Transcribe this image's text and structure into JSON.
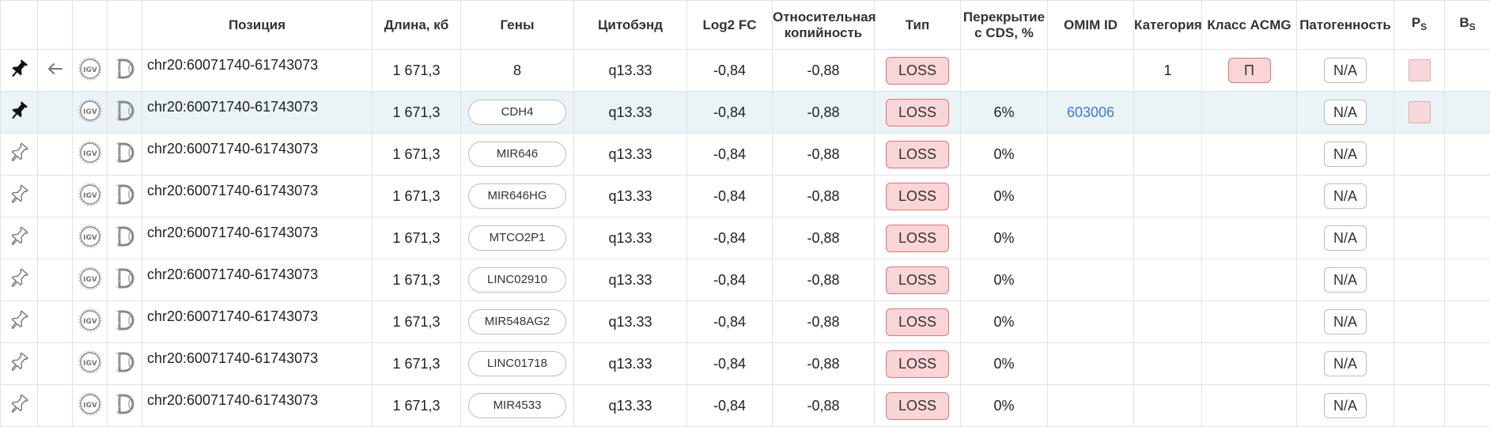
{
  "headers": {
    "position": "Позиция",
    "length": "Длина, кб",
    "genes": "Гены",
    "cytoband": "Цитобэнд",
    "log2fc": "Log2 FC",
    "relcopy_1": "Относительная",
    "relcopy_2": "копийность",
    "type": "Тип",
    "overlap_1": "Перекрытие",
    "overlap_2": "с CDS, %",
    "omim": "OMIM ID",
    "category": "Категория",
    "acmg": "Класс ACMG",
    "pathogenicity": "Патогенность",
    "ps_main": "P",
    "ps_sub": "S",
    "bs_main": "B",
    "bs_sub": "S"
  },
  "rows": [
    {
      "pinned": true,
      "back": true,
      "position": "chr20:60071740-61743073",
      "length": "1 671,3",
      "gene": "8",
      "gene_chip": false,
      "cytoband": "q13.33",
      "log2fc": "-0,84",
      "relcopy": "-0,88",
      "type": "LOSS",
      "overlap": "",
      "omim": "",
      "category": "1",
      "acmg": "П",
      "pathogenicity": "N/A",
      "ps_checked": true
    },
    {
      "pinned": true,
      "back": false,
      "position": "chr20:60071740-61743073",
      "length": "1 671,3",
      "gene": "CDH4",
      "gene_chip": true,
      "cytoband": "q13.33",
      "log2fc": "-0,84",
      "relcopy": "-0,88",
      "type": "LOSS",
      "overlap": "6%",
      "omim": "603006",
      "category": "",
      "acmg": "",
      "pathogenicity": "N/A",
      "ps_checked": true
    },
    {
      "pinned": false,
      "back": false,
      "position": "chr20:60071740-61743073",
      "length": "1 671,3",
      "gene": "MIR646",
      "gene_chip": true,
      "cytoband": "q13.33",
      "log2fc": "-0,84",
      "relcopy": "-0,88",
      "type": "LOSS",
      "overlap": "0%",
      "omim": "",
      "category": "",
      "acmg": "",
      "pathogenicity": "N/A",
      "ps_checked": false
    },
    {
      "pinned": false,
      "back": false,
      "position": "chr20:60071740-61743073",
      "length": "1 671,3",
      "gene": "MIR646HG",
      "gene_chip": true,
      "cytoband": "q13.33",
      "log2fc": "-0,84",
      "relcopy": "-0,88",
      "type": "LOSS",
      "overlap": "0%",
      "omim": "",
      "category": "",
      "acmg": "",
      "pathogenicity": "N/A",
      "ps_checked": false
    },
    {
      "pinned": false,
      "back": false,
      "position": "chr20:60071740-61743073",
      "length": "1 671,3",
      "gene": "MTCO2P1",
      "gene_chip": true,
      "cytoband": "q13.33",
      "log2fc": "-0,84",
      "relcopy": "-0,88",
      "type": "LOSS",
      "overlap": "0%",
      "omim": "",
      "category": "",
      "acmg": "",
      "pathogenicity": "N/A",
      "ps_checked": false
    },
    {
      "pinned": false,
      "back": false,
      "position": "chr20:60071740-61743073",
      "length": "1 671,3",
      "gene": "LINC02910",
      "gene_chip": true,
      "cytoband": "q13.33",
      "log2fc": "-0,84",
      "relcopy": "-0,88",
      "type": "LOSS",
      "overlap": "0%",
      "omim": "",
      "category": "",
      "acmg": "",
      "pathogenicity": "N/A",
      "ps_checked": false
    },
    {
      "pinned": false,
      "back": false,
      "position": "chr20:60071740-61743073",
      "length": "1 671,3",
      "gene": "MIR548AG2",
      "gene_chip": true,
      "cytoband": "q13.33",
      "log2fc": "-0,84",
      "relcopy": "-0,88",
      "type": "LOSS",
      "overlap": "0%",
      "omim": "",
      "category": "",
      "acmg": "",
      "pathogenicity": "N/A",
      "ps_checked": false
    },
    {
      "pinned": false,
      "back": false,
      "position": "chr20:60071740-61743073",
      "length": "1 671,3",
      "gene": "LINC01718",
      "gene_chip": true,
      "cytoband": "q13.33",
      "log2fc": "-0,84",
      "relcopy": "-0,88",
      "type": "LOSS",
      "overlap": "0%",
      "omim": "",
      "category": "",
      "acmg": "",
      "pathogenicity": "N/A",
      "ps_checked": false
    },
    {
      "pinned": false,
      "back": false,
      "position": "chr20:60071740-61743073",
      "length": "1 671,3",
      "gene": "MIR4533",
      "gene_chip": true,
      "cytoband": "q13.33",
      "log2fc": "-0,84",
      "relcopy": "-0,88",
      "type": "LOSS",
      "overlap": "0%",
      "omim": "",
      "category": "",
      "acmg": "",
      "pathogenicity": "N/A",
      "ps_checked": false
    }
  ],
  "icons": {
    "pin": "pin-icon",
    "back": "back-arrow-icon",
    "igv": "igv-icon",
    "decipher": "decipher-icon",
    "igv_label": "IGV"
  },
  "colors": {
    "loss_bg": "#f9d5d7",
    "loss_border": "#e57373",
    "highlight_row": "#eaf3f6",
    "link": "#3b7ad6"
  }
}
